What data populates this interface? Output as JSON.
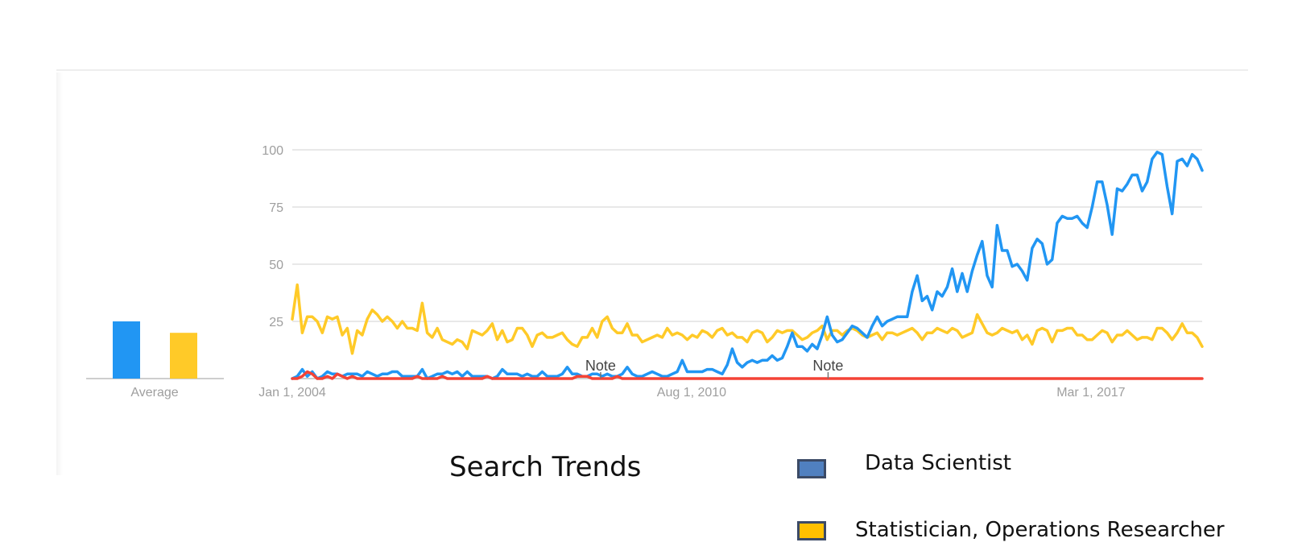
{
  "chart_data": {
    "type": "line",
    "y_ticks": [
      "100",
      "75",
      "50",
      "25"
    ],
    "ylim": [
      0,
      100
    ],
    "x_tick_labels": [
      "Jan 1, 2004",
      "Aug 1, 2010",
      "Mar 1, 2017"
    ],
    "x_tick_values": [
      0,
      79,
      158
    ],
    "x_range": [
      0,
      180
    ],
    "notes": [
      {
        "label": "Note",
        "x": 61
      },
      {
        "label": "Note",
        "x": 106
      }
    ],
    "grid": true,
    "average_label": "Average",
    "averages": [
      {
        "series": "Data Scientist",
        "value": 25,
        "color": "#2196f3"
      },
      {
        "series": "Statistician, Operations Researcher",
        "value": 20,
        "color": "#ffca28"
      }
    ],
    "series": [
      {
        "name": "Data Scientist",
        "color": "#2196f3",
        "values": [
          0,
          1,
          4,
          1,
          3,
          0,
          1,
          3,
          2,
          2,
          1,
          2,
          2,
          2,
          1,
          3,
          2,
          1,
          2,
          2,
          3,
          3,
          1,
          1,
          1,
          1,
          4,
          0,
          1,
          2,
          2,
          3,
          2,
          3,
          1,
          3,
          1,
          1,
          1,
          1,
          0,
          1,
          4,
          2,
          2,
          2,
          1,
          2,
          1,
          1,
          3,
          1,
          1,
          1,
          2,
          5,
          2,
          2,
          1,
          1,
          2,
          2,
          1,
          2,
          1,
          1,
          2,
          5,
          2,
          1,
          1,
          2,
          3,
          2,
          1,
          1,
          2,
          3,
          8,
          3,
          3,
          3,
          3,
          4,
          4,
          3,
          2,
          6,
          13,
          7,
          5,
          7,
          8,
          7,
          8,
          8,
          10,
          8,
          9,
          14,
          20,
          14,
          14,
          12,
          15,
          13,
          19,
          27,
          19,
          16,
          17,
          20,
          23,
          22,
          20,
          18,
          23,
          27,
          23,
          25,
          26,
          27,
          27,
          27,
          38,
          45,
          34,
          36,
          30,
          38,
          36,
          40,
          48,
          38,
          46,
          38,
          47,
          54,
          60,
          45,
          40,
          67,
          56,
          56,
          49,
          50,
          47,
          43,
          57,
          61,
          59,
          50,
          52,
          68,
          71,
          70,
          70,
          71,
          68,
          66,
          75,
          86,
          86,
          76,
          63,
          83,
          82,
          85,
          89,
          89,
          82,
          86,
          96,
          99,
          98,
          84,
          72,
          95,
          96,
          93,
          98,
          96,
          91
        ]
      },
      {
        "name": "Statistician, Operations Researcher",
        "color": "#ffca28",
        "values": [
          26,
          41,
          20,
          27,
          27,
          25,
          20,
          27,
          26,
          27,
          19,
          22,
          11,
          21,
          19,
          26,
          30,
          28,
          25,
          27,
          25,
          22,
          25,
          22,
          22,
          21,
          33,
          20,
          18,
          22,
          17,
          16,
          15,
          17,
          16,
          13,
          21,
          20,
          19,
          21,
          24,
          17,
          21,
          16,
          17,
          22,
          22,
          19,
          14,
          19,
          20,
          18,
          18,
          19,
          20,
          17,
          15,
          14,
          18,
          18,
          22,
          18,
          25,
          27,
          22,
          20,
          20,
          24,
          19,
          19,
          16,
          17,
          18,
          19,
          18,
          22,
          19,
          20,
          19,
          17,
          19,
          18,
          21,
          20,
          18,
          21,
          22,
          19,
          20,
          18,
          18,
          16,
          20,
          21,
          20,
          16,
          18,
          21,
          20,
          21,
          21,
          19,
          17,
          18,
          20,
          21,
          23,
          17,
          21,
          21,
          19,
          21,
          22,
          21,
          19,
          18,
          19,
          20,
          17,
          20,
          20,
          19,
          20,
          21,
          22,
          20,
          17,
          20,
          20,
          22,
          21,
          20,
          22,
          21,
          18,
          19,
          20,
          28,
          24,
          20,
          19,
          20,
          22,
          21,
          20,
          21,
          17,
          19,
          15,
          21,
          22,
          21,
          16,
          21,
          21,
          22,
          22,
          19,
          19,
          17,
          17,
          19,
          21,
          20,
          16,
          19,
          19,
          21,
          19,
          17,
          18,
          18,
          17,
          22,
          22,
          20,
          17,
          20,
          24,
          20,
          20,
          18,
          14
        ]
      },
      {
        "name": "",
        "color": "#f44336",
        "values": [
          0,
          0,
          1,
          3,
          2,
          0,
          0,
          1,
          0,
          2,
          1,
          0,
          1,
          0,
          0,
          0,
          0,
          0,
          0,
          0,
          0,
          0,
          0,
          0,
          0,
          1,
          0,
          0,
          0,
          0,
          1,
          0,
          0,
          0,
          0,
          0,
          0,
          0,
          0,
          1,
          0,
          0,
          0,
          0,
          0,
          0,
          0,
          0,
          0,
          0,
          0,
          0,
          0,
          0,
          0,
          0,
          0,
          1,
          1,
          1,
          0,
          0,
          0,
          0,
          0,
          1,
          0,
          0,
          0,
          0,
          0,
          0,
          0,
          0,
          0,
          0,
          0,
          0,
          0,
          0,
          0,
          0,
          0,
          0,
          0,
          0,
          0,
          0,
          0,
          0,
          0,
          0,
          0,
          0,
          0,
          0,
          0,
          0,
          0,
          0,
          0,
          0,
          0,
          0,
          0,
          0,
          0,
          0,
          0,
          0,
          0,
          0,
          0,
          0,
          0,
          0,
          0,
          0,
          0,
          0,
          0,
          0,
          0,
          0,
          0,
          0,
          0,
          0,
          0,
          0,
          0,
          0,
          0,
          0,
          0,
          0,
          0,
          0,
          0,
          0,
          0,
          0,
          0,
          0,
          0,
          0,
          0,
          0,
          0,
          0,
          0,
          0,
          0,
          0,
          0,
          0,
          0,
          0,
          0,
          0,
          0,
          0,
          0,
          0,
          0,
          0,
          0,
          0,
          0,
          0,
          0,
          0,
          0,
          0,
          0,
          0,
          0,
          0,
          0,
          0,
          0,
          0,
          0
        ]
      }
    ]
  },
  "caption": "Search Trends",
  "legend": [
    {
      "label": "Data Scientist",
      "color": "#5080c0"
    },
    {
      "label": "Statistician, Operations Researcher",
      "color": "#ffc000"
    }
  ]
}
